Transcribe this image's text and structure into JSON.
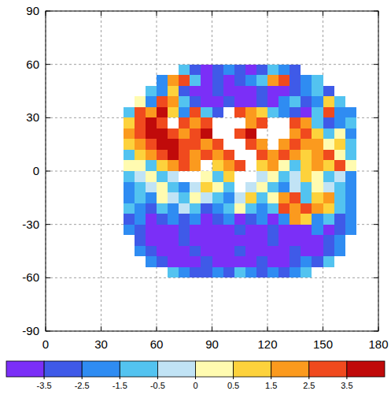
{
  "chart_data": {
    "type": "heatmap",
    "x": [
      45,
      51,
      57,
      63,
      69,
      75,
      81,
      87,
      93,
      99,
      105,
      111,
      117,
      123,
      129,
      135,
      141,
      147,
      153,
      159,
      165
    ],
    "y": [
      57,
      51,
      45,
      39,
      33,
      27,
      21,
      15,
      9,
      3,
      -3,
      -9,
      -15,
      -21,
      -27,
      -33,
      -39,
      -45,
      -51,
      -57
    ],
    "values": [
      [
        null,
        null,
        null,
        null,
        null,
        -1,
        -3,
        -4,
        -3,
        -2,
        -3,
        -4,
        -3,
        -1,
        -2,
        -3,
        null,
        null,
        null,
        null,
        null
      ],
      [
        null,
        null,
        null,
        -2,
        2,
        3,
        -1,
        -4,
        -3,
        -4,
        -3,
        -2,
        -1,
        2,
        3,
        -3,
        -2,
        -1,
        null,
        null,
        null
      ],
      [
        null,
        null,
        -1,
        -2,
        1,
        -3,
        -4,
        -4,
        -3,
        -4,
        -4,
        -4,
        -3,
        -4,
        -4,
        -3,
        -2,
        -1,
        -3,
        null,
        null
      ],
      [
        null,
        0.3,
        -2,
        3,
        2,
        -1,
        -3,
        -4,
        -4,
        -3,
        -4,
        -4,
        -3,
        -4,
        -2,
        -1,
        -3,
        -2,
        1,
        -1,
        null
      ],
      [
        -1,
        3,
        2,
        4,
        1,
        -2,
        3,
        -1,
        -3,
        null,
        3,
        2,
        1,
        -1,
        -2,
        -3,
        -4,
        -1,
        3,
        -2,
        -2
      ],
      [
        1,
        3,
        4,
        3,
        null,
        3,
        2,
        3,
        null,
        null,
        null,
        2,
        3,
        null,
        null,
        3,
        2,
        -1,
        -3,
        -2,
        -1
      ],
      [
        2,
        3,
        4,
        4,
        3,
        2,
        3,
        4,
        null,
        null,
        3,
        4,
        null,
        null,
        null,
        2,
        3,
        1,
        -1,
        0.3,
        -2
      ],
      [
        1,
        2,
        3,
        4,
        4,
        3,
        3,
        2,
        3,
        null,
        null,
        3,
        2,
        null,
        2,
        3,
        2,
        2,
        0.3,
        1,
        -1
      ],
      [
        -1,
        1,
        2,
        3,
        4,
        3,
        2,
        3,
        2,
        3,
        null,
        null,
        3,
        2,
        3,
        2,
        1,
        2,
        3,
        0.3,
        -1
      ],
      [
        0.3,
        0.3,
        -1,
        1,
        2,
        3,
        2,
        null,
        1,
        2,
        3,
        null,
        1,
        2,
        0.3,
        -1,
        1,
        2,
        1,
        3,
        0.3
      ],
      [
        -1,
        -0.3,
        0.3,
        -1,
        -0.3,
        null,
        null,
        0.3,
        -1,
        1,
        null,
        null,
        -0.3,
        0.3,
        -1,
        -0.3,
        1,
        0.3,
        -1,
        -0.3,
        -2
      ],
      [
        -2,
        -1,
        -0.3,
        0.3,
        -1,
        -2,
        -0.3,
        1,
        0.3,
        -1,
        null,
        -0.3,
        0.3,
        -1,
        -2,
        -0.3,
        -1,
        0.3,
        -0.3,
        -1,
        -2
      ],
      [
        -2,
        -1,
        -2,
        0.3,
        -0.3,
        -1,
        0.3,
        -0.3,
        -1,
        -2,
        -0.3,
        1,
        -1,
        0.3,
        2,
        3,
        -1,
        1,
        2,
        -1,
        -2
      ],
      [
        -1,
        -2,
        -3,
        -1,
        -2,
        -0.3,
        -1,
        -3,
        -2,
        -1,
        0.3,
        -1,
        -2,
        -1,
        3,
        2,
        3,
        2,
        1,
        -1,
        -2
      ],
      [
        -3,
        -2,
        -4,
        -3,
        -2,
        -3,
        -2,
        -4,
        -3,
        -2,
        -4,
        -3,
        -2,
        -4,
        -2,
        2,
        1,
        -2,
        -1,
        -3,
        -2
      ],
      [
        -2,
        -3,
        -4,
        -4,
        -4,
        -3,
        -4,
        -4,
        -4,
        -4,
        -3,
        -4,
        -4,
        -3,
        -4,
        -4,
        -4,
        -2,
        -4,
        -3,
        -2
      ],
      [
        null,
        -3,
        -4,
        -4,
        -4,
        -3,
        -4,
        -4,
        -4,
        -4,
        -4,
        -4,
        -4,
        -3,
        -4,
        -4,
        -4,
        -4,
        -3,
        -2,
        null
      ],
      [
        null,
        -2,
        -3,
        -4,
        -4,
        -4,
        -3,
        -4,
        -4,
        -4,
        -3,
        -4,
        -4,
        -4,
        -4,
        -3,
        -4,
        -4,
        -3,
        -2,
        null
      ],
      [
        null,
        null,
        -2,
        -3,
        -4,
        -4,
        -4,
        -3,
        -4,
        -4,
        -4,
        -4,
        -3,
        -4,
        -4,
        -3,
        -2,
        -3,
        -1,
        null,
        null
      ],
      [
        null,
        null,
        null,
        null,
        -1,
        -2,
        -3,
        -3,
        -2,
        -3,
        -1,
        -2,
        -3,
        -2,
        -3,
        -2,
        -1,
        null,
        null,
        null,
        null
      ]
    ],
    "xlim": [
      0,
      180
    ],
    "xticks": [
      0,
      30,
      60,
      90,
      120,
      150,
      180
    ],
    "ylim": [
      -90,
      90
    ],
    "yticks": [
      -90,
      -60,
      -30,
      0,
      30,
      60,
      90
    ],
    "grid": true,
    "colorbar": {
      "ticks": [
        -3.5,
        -2.5,
        -1.5,
        -0.5,
        0,
        0.5,
        1.5,
        2.5,
        3.5
      ],
      "colors": [
        "#7b2ff7",
        "#3f5ae8",
        "#2f8cf2",
        "#53c3f0",
        "#c1e3f5",
        "#fffbb0",
        "#fdd23c",
        "#fb9a1e",
        "#f04a1e",
        "#c00a0a"
      ]
    }
  }
}
